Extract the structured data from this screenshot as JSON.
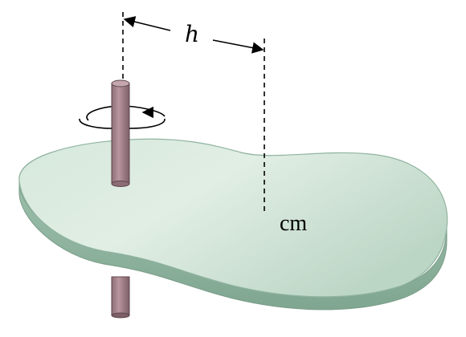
{
  "diagram": {
    "labels": {
      "distance": "h",
      "center_of_mass": "cm"
    },
    "colors": {
      "plate_top": "#cfe3d6",
      "plate_top_light": "#e2efe5",
      "plate_edge": "#8fb3a0",
      "plate_edge_dark": "#7fa690",
      "axle": "#a98790",
      "axle_dark": "#7d5f67",
      "axle_top": "#c4a6ae",
      "line": "#000000"
    },
    "icons": {
      "rotation": "rotation-arrow-icon",
      "axle": "axle-rod"
    }
  }
}
